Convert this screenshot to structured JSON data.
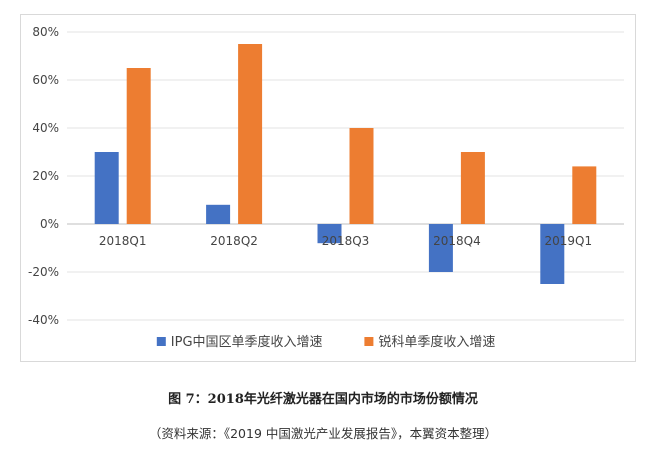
{
  "chart_data": {
    "type": "bar",
    "categories": [
      "2018Q1",
      "2018Q2",
      "2018Q3",
      "2018Q4",
      "2019Q1"
    ],
    "series": [
      {
        "name": "IPG中国区单季度收入增速",
        "color": "#4472c4",
        "values": [
          30,
          8,
          -8,
          -20,
          -25
        ]
      },
      {
        "name": "锐科单季度收入增速",
        "color": "#ed7d31",
        "values": [
          65,
          75,
          40,
          30,
          24
        ]
      }
    ],
    "ylim": [
      -40,
      80
    ],
    "yticks": [
      -40,
      -20,
      0,
      20,
      40,
      60,
      80
    ],
    "ytick_labels": [
      "-40%",
      "-20%",
      "0%",
      "20%",
      "40%",
      "60%",
      "80%"
    ],
    "grid": true,
    "legend_position": "bottom"
  },
  "figure": {
    "title": "图 7：2018年光纤激光器在国内市场的市场份额情况",
    "source": "（资料来源：《2019 中国激光产业发展报告》，本翼资本整理）"
  }
}
